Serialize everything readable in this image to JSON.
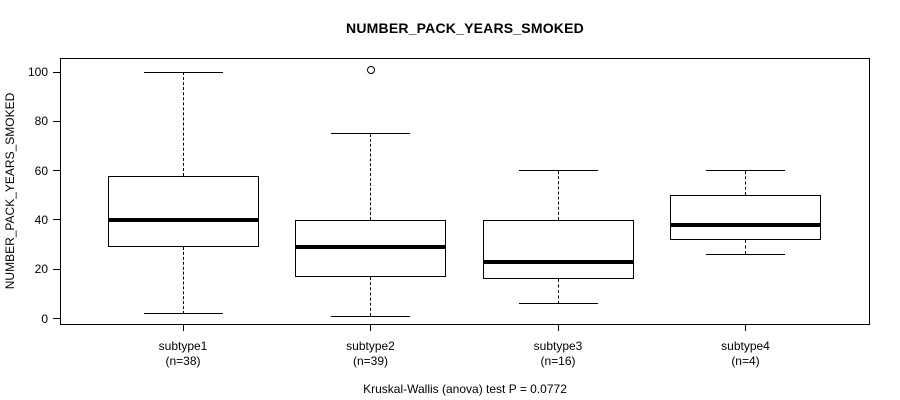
{
  "title": "NUMBER_PACK_YEARS_SMOKED",
  "footer": "Kruskal-Wallis (anova) test P = 0.0772",
  "chart_data": {
    "type": "boxplot",
    "title": "NUMBER_PACK_YEARS_SMOKED",
    "ylabel": "NUMBER_PACK_YEARS_SMOKED",
    "xlabel": "",
    "yticks": [
      0,
      20,
      40,
      60,
      80,
      100
    ],
    "ylim": [
      -3,
      106
    ],
    "grid": false,
    "legend": "none",
    "line_color": "#000000",
    "box_fill": "#ffffff",
    "groups": [
      {
        "label": "subtype1",
        "sublabel": "(n=38)",
        "n": 38,
        "whisker_low": 2,
        "q1": 29,
        "median": 40,
        "q3": 58,
        "whisker_high": 100,
        "outliers": []
      },
      {
        "label": "subtype2",
        "sublabel": "(n=39)",
        "n": 39,
        "whisker_low": 1,
        "q1": 17,
        "median": 29,
        "q3": 40,
        "whisker_high": 75,
        "outliers": [
          101
        ]
      },
      {
        "label": "subtype3",
        "sublabel": "(n=16)",
        "n": 16,
        "whisker_low": 6,
        "q1": 16,
        "median": 23,
        "q3": 40,
        "whisker_high": 60,
        "outliers": []
      },
      {
        "label": "subtype4",
        "sublabel": "(n=4)",
        "n": 4,
        "whisker_low": 26,
        "q1": 32,
        "median": 38,
        "q3": 50,
        "whisker_high": 60,
        "outliers": []
      }
    ],
    "annotation": "Kruskal-Wallis (anova) test P = 0.0772"
  }
}
